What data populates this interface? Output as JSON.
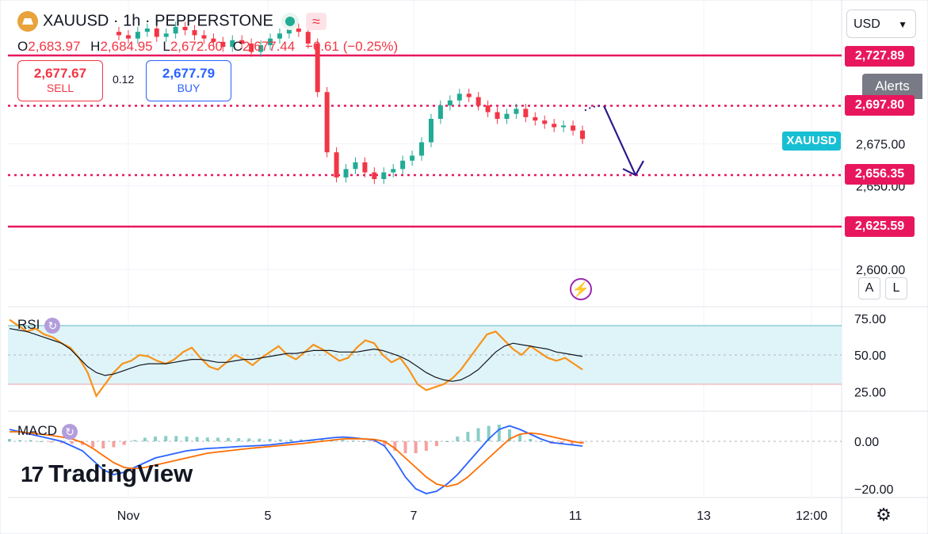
{
  "header": {
    "symbol": "XAUUSD",
    "interval": "1h",
    "exchange": "PEPPERSTONE",
    "title_full": "XAUUSD · 1h · PEPPERSTONE",
    "wave_icon": "≈"
  },
  "ohlc": {
    "o_label": "O",
    "o": "2,683.97",
    "h_label": "H",
    "h": "2,684.95",
    "l_label": "L",
    "l": "2,672.60",
    "c_label": "C",
    "c": "2,677.44",
    "change": "−6.61 (−0.25%)"
  },
  "trade": {
    "sell_price": "2,677.67",
    "sell_label": "SELL",
    "spread": "0.12",
    "buy_price": "2,677.79",
    "buy_label": "BUY"
  },
  "toolbar": {
    "currency": "USD",
    "alerts": "Alerts",
    "auto_scale": "A",
    "log_scale": "L"
  },
  "symbol_tag": "XAUUSD",
  "levels": [
    {
      "price": 2727.89,
      "label": "2,727.89",
      "style": "solid"
    },
    {
      "price": 2697.8,
      "label": "2,697.80",
      "style": "dotted"
    },
    {
      "price": 2656.35,
      "label": "2,656.35",
      "style": "dotted"
    },
    {
      "price": 2625.59,
      "label": "2,625.59",
      "style": "solid"
    }
  ],
  "indicators": {
    "rsi_label": "RSI",
    "macd_label": "MACD"
  },
  "branding": {
    "logo_mark": "17",
    "logo_text": "TradingView"
  },
  "colors": {
    "up": "#22ab94",
    "down": "#f23645",
    "level": "#e8175d",
    "rsi": "#f7931a",
    "rsi_band": "#dff4f8",
    "macd": "#2962ff",
    "signal": "#ff6d00",
    "arrow": "#2a1a8c"
  },
  "chart_data": [
    {
      "type": "candlestick",
      "title": "XAUUSD · 1h · PEPPERSTONE",
      "y_axis_ticks": [
        {
          "value": 2675,
          "label": "2,675.00"
        },
        {
          "value": 2650,
          "label": "2,650.00"
        },
        {
          "value": 2600,
          "label": "2,600.00"
        }
      ],
      "ylim": [
        2590,
        2745
      ],
      "x_axis_ticks": [
        "Nov",
        "5",
        "7",
        "11",
        "13",
        "12:00"
      ],
      "close_path": [
        2740,
        2738,
        2742,
        2744,
        2739,
        2741,
        2745,
        2743,
        2740,
        2738,
        2736,
        2733,
        2737,
        2735,
        2730,
        2734,
        2738,
        2741,
        2744,
        2742,
        2735,
        2706,
        2670,
        2655,
        2660,
        2664,
        2658,
        2654,
        2658,
        2660,
        2665,
        2668,
        2676,
        2690,
        2698,
        2701,
        2705,
        2703,
        2698,
        2694,
        2690,
        2693,
        2696,
        2691,
        2689,
        2687,
        2685,
        2686,
        2683,
        2678
      ],
      "projection": {
        "from": 2697.8,
        "to": 2656.35
      }
    },
    {
      "type": "line",
      "title": "RSI",
      "y_axis_ticks": [
        75,
        50,
        25
      ],
      "y_tick_labels": [
        "75.00",
        "50.00",
        "25.00"
      ],
      "ylim": [
        10,
        80
      ],
      "band": [
        30,
        70
      ],
      "series": [
        {
          "values": [
            74,
            70,
            66,
            68,
            64,
            62,
            58,
            55,
            48,
            38,
            22,
            30,
            38,
            44,
            46,
            50,
            49,
            46,
            44,
            47,
            52,
            55,
            48,
            42,
            40,
            45,
            50,
            47,
            43,
            48,
            52,
            56,
            50,
            47,
            52,
            57,
            54,
            50,
            46,
            48,
            55,
            60,
            58,
            50,
            45,
            48,
            40,
            30,
            26,
            28,
            30,
            34,
            40,
            48,
            56,
            64,
            66,
            60,
            54,
            50,
            56,
            52,
            48,
            46,
            48,
            44,
            40
          ]
        },
        {
          "values": [
            68,
            67,
            66,
            64,
            62,
            60,
            58,
            54,
            48,
            42,
            38,
            36,
            37,
            39,
            41,
            43,
            44,
            44,
            44,
            45,
            46,
            47,
            47,
            46,
            45,
            45,
            46,
            47,
            47,
            48,
            49,
            50,
            51,
            51,
            52,
            53,
            53,
            53,
            52,
            52,
            52,
            53,
            54,
            53,
            51,
            49,
            46,
            42,
            38,
            35,
            33,
            32,
            33,
            36,
            40,
            46,
            52,
            56,
            58,
            57,
            56,
            55,
            54,
            52,
            51,
            50,
            49
          ]
        }
      ]
    },
    {
      "type": "bar",
      "title": "MACD",
      "y_axis_ticks": [
        0,
        -20
      ],
      "y_tick_labels": [
        "0.00",
        "−20.00"
      ],
      "ylim": [
        -25,
        8
      ],
      "series": [
        {
          "values": [
            5,
            4,
            3,
            2,
            1,
            0,
            -2,
            -4,
            -8,
            -12,
            -14,
            -13,
            -11,
            -9,
            -7,
            -6,
            -5,
            -4,
            -3.5,
            -3,
            -2.8,
            -2.5,
            -2.2,
            -2,
            -1.8,
            -1.5,
            -1,
            -0.5,
            0,
            0.5,
            1,
            1.5,
            1.8,
            1.5,
            1,
            0.5,
            -2,
            -8,
            -15,
            -20,
            -22,
            -21,
            -18,
            -14,
            -9,
            -4,
            1,
            5,
            6.5,
            5,
            3,
            1,
            -0.5,
            -1,
            -1.5,
            -2
          ]
        },
        {
          "values": [
            4,
            4,
            3.5,
            3,
            2.5,
            1.8,
            1,
            -0.5,
            -3,
            -6,
            -9,
            -11,
            -11.5,
            -11,
            -10,
            -9,
            -8,
            -7,
            -6,
            -5,
            -4.5,
            -4,
            -3.5,
            -3,
            -2.6,
            -2.2,
            -1.8,
            -1.4,
            -1,
            -0.5,
            0,
            0.5,
            1,
            1.1,
            1,
            0.8,
            0,
            -3,
            -7,
            -11,
            -15,
            -18,
            -19,
            -18,
            -15,
            -11,
            -7,
            -3,
            1,
            3,
            3.5,
            3,
            2,
            1,
            0,
            -0.8
          ]
        },
        {
          "values": [
            1,
            0.5,
            0.5,
            0,
            -0.5,
            -0.8,
            -1,
            -1.5,
            -2.5,
            -3,
            -2.5,
            -1.5,
            0.5,
            1.5,
            2,
            2.2,
            2.2,
            2,
            1.8,
            1.6,
            1.5,
            1.4,
            1.3,
            1.2,
            1.1,
            1,
            0.8,
            0.8,
            0.8,
            0.8,
            0.8,
            0.8,
            0.6,
            0.3,
            0,
            -0.3,
            -2,
            -4,
            -5,
            -5,
            -4,
            -2,
            0,
            2,
            4,
            5.5,
            6.5,
            7,
            5,
            3,
            1,
            0,
            -1,
            -1.2,
            -1.2,
            -1
          ]
        }
      ]
    }
  ]
}
